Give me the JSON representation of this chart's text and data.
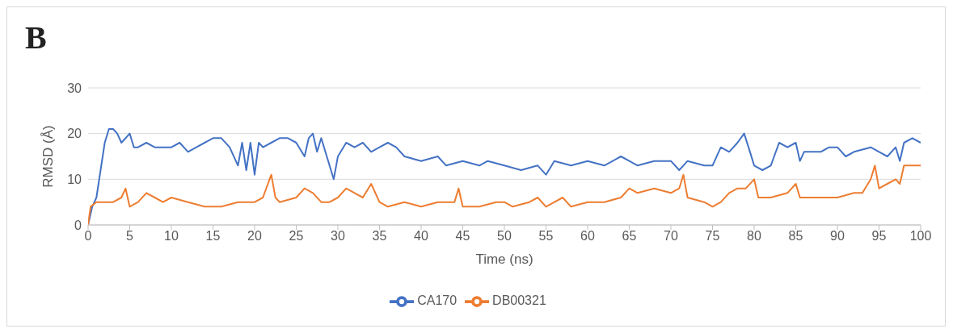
{
  "chart_data": {
    "type": "line",
    "title": "B",
    "xlabel": "Time (ns)",
    "ylabel": "RMSD (Å)",
    "xlim": [
      0,
      100
    ],
    "xticks": [
      0,
      5,
      10,
      15,
      20,
      25,
      30,
      35,
      40,
      45,
      50,
      55,
      60,
      65,
      70,
      75,
      80,
      85,
      90,
      95,
      100
    ],
    "ylim": [
      0,
      30
    ],
    "yticks": [
      0,
      10,
      20,
      30
    ],
    "grid": "y",
    "legend": "bottom",
    "marker": "none",
    "line_style": "solid",
    "series": [
      {
        "name": "CA170",
        "color": "#4472c4",
        "x": [
          0,
          0.5,
          1,
          1.5,
          2,
          2.5,
          3,
          3.5,
          4,
          5,
          5.5,
          6,
          7,
          8,
          9,
          10,
          11,
          12,
          13,
          14,
          15,
          16,
          17,
          18,
          18.5,
          19,
          19.5,
          20,
          20.5,
          21,
          22,
          23,
          24,
          25,
          26,
          26.5,
          27,
          27.5,
          28,
          29,
          29.5,
          30,
          31,
          32,
          33,
          34,
          35,
          36,
          37,
          38,
          40,
          42,
          43,
          45,
          47,
          48,
          50,
          52,
          54,
          55,
          56,
          58,
          60,
          62,
          64,
          65,
          66,
          68,
          70,
          71,
          72,
          74,
          75,
          76,
          77,
          78,
          78.8,
          79.5,
          80,
          81,
          82,
          83,
          84,
          85,
          85.5,
          86,
          88,
          89,
          90,
          91,
          92,
          94,
          95,
          96,
          97,
          97.5,
          98,
          99,
          100
        ],
        "values": [
          0,
          4,
          6,
          12,
          18,
          21,
          21,
          20,
          18,
          20,
          17,
          17,
          18,
          17,
          17,
          17,
          18,
          16,
          17,
          18,
          19,
          19,
          17,
          13,
          18,
          12,
          18,
          11,
          18,
          17,
          18,
          19,
          19,
          18,
          15,
          19,
          20,
          16,
          19,
          13,
          10,
          15,
          18,
          17,
          18,
          16,
          17,
          18,
          17,
          15,
          14,
          15,
          13,
          14,
          13,
          14,
          13,
          12,
          13,
          11,
          14,
          13,
          14,
          13,
          15,
          14,
          13,
          14,
          14,
          12,
          14,
          13,
          13,
          17,
          16,
          18,
          20,
          16,
          13,
          12,
          13,
          18,
          17,
          18,
          14,
          16,
          16,
          17,
          17,
          15,
          16,
          17,
          16,
          15,
          17,
          14,
          18,
          19,
          18
        ]
      },
      {
        "name": "DB00321",
        "color": "#ed7d31",
        "x": [
          0,
          0.3,
          1,
          2,
          3,
          4,
          4.5,
          5,
          6,
          7,
          8,
          9,
          10,
          12,
          14,
          16,
          18,
          20,
          21,
          22,
          22.5,
          23,
          25,
          26,
          27,
          28,
          29,
          30,
          31,
          32,
          33,
          34,
          35,
          36,
          38,
          40,
          42,
          44,
          44.5,
          45,
          47,
          49,
          50,
          51,
          53,
          54,
          55,
          57,
          58,
          60,
          62,
          64,
          65,
          66,
          68,
          70,
          71,
          71.5,
          72,
          74,
          75,
          76,
          77,
          78,
          79,
          80,
          80.5,
          82,
          84,
          85,
          85.5,
          87,
          89,
          90,
          92,
          93,
          94,
          94.5,
          95,
          96,
          97,
          97.5,
          98,
          100
        ],
        "values": [
          0,
          4,
          5,
          5,
          5,
          6,
          8,
          4,
          5,
          7,
          6,
          5,
          6,
          5,
          4,
          4,
          5,
          5,
          6,
          11,
          6,
          5,
          6,
          8,
          7,
          5,
          5,
          6,
          8,
          7,
          6,
          9,
          5,
          4,
          5,
          4,
          5,
          5,
          8,
          4,
          4,
          5,
          5,
          4,
          5,
          6,
          4,
          6,
          4,
          5,
          5,
          6,
          8,
          7,
          8,
          7,
          8,
          11,
          6,
          5,
          4,
          5,
          7,
          8,
          8,
          10,
          6,
          6,
          7,
          9,
          6,
          6,
          6,
          6,
          7,
          7,
          10,
          13,
          8,
          9,
          10,
          9,
          13,
          13
        ]
      }
    ]
  }
}
